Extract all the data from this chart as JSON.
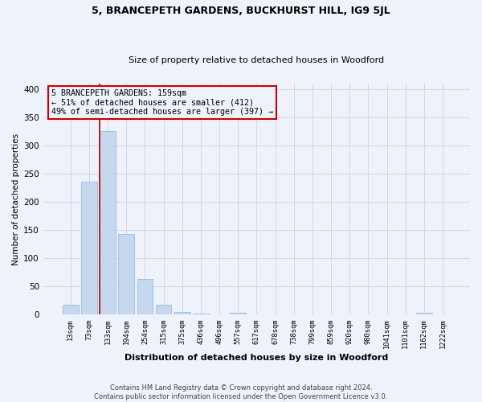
{
  "title1": "5, BRANCEPETH GARDENS, BUCKHURST HILL, IG9 5JL",
  "title2": "Size of property relative to detached houses in Woodford",
  "xlabel": "Distribution of detached houses by size in Woodford",
  "ylabel": "Number of detached properties",
  "annotation_lines": [
    "5 BRANCEPETH GARDENS: 159sqm",
    "← 51% of detached houses are smaller (412)",
    "49% of semi-detached houses are larger (397) →"
  ],
  "categories": [
    "13sqm",
    "73sqm",
    "133sqm",
    "194sqm",
    "254sqm",
    "315sqm",
    "375sqm",
    "436sqm",
    "496sqm",
    "557sqm",
    "617sqm",
    "678sqm",
    "738sqm",
    "799sqm",
    "859sqm",
    "920sqm",
    "980sqm",
    "1041sqm",
    "1101sqm",
    "1162sqm",
    "1222sqm"
  ],
  "values": [
    18,
    236,
    325,
    143,
    63,
    18,
    5,
    2,
    0,
    3,
    0,
    0,
    0,
    0,
    0,
    0,
    0,
    0,
    0,
    3,
    0
  ],
  "bar_color": "#c5d8ee",
  "bar_edge_color": "#8ab4d8",
  "marker_bar_index": 2,
  "marker_line_color": "#aa0000",
  "grid_color": "#d0d8e8",
  "background_color": "#eef2fa",
  "annotation_box_edge": "#cc0000",
  "footer": "Contains HM Land Registry data © Crown copyright and database right 2024.\nContains public sector information licensed under the Open Government Licence v3.0.",
  "ylim": [
    0,
    410
  ],
  "yticks": [
    0,
    50,
    100,
    150,
    200,
    250,
    300,
    350,
    400
  ]
}
